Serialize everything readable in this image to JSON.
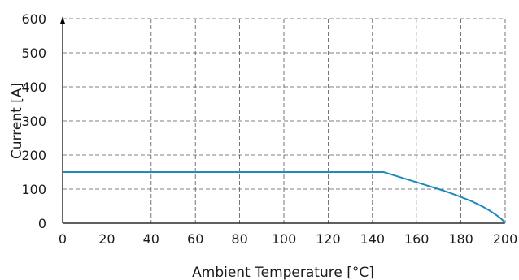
{
  "colors": {
    "series": "#1f8ac0",
    "grid": "#555555",
    "axis": "#000000"
  },
  "chart_data": {
    "type": "line",
    "title": "",
    "xlabel": "Ambient Temperature [°C]",
    "ylabel": "Current [A]",
    "xlim": [
      0,
      200
    ],
    "ylim": [
      0,
      600
    ],
    "xticks": [
      0,
      20,
      40,
      60,
      80,
      100,
      120,
      140,
      160,
      180,
      200
    ],
    "yticks": [
      0,
      100,
      200,
      300,
      400,
      500,
      600
    ],
    "xtick_labels": [
      "0",
      "20",
      "40",
      "60",
      "80",
      "100",
      "120",
      "140",
      "160",
      "180",
      "200"
    ],
    "ytick_labels": [
      "0",
      "100",
      "200",
      "300",
      "400",
      "500",
      "600"
    ],
    "grid": true,
    "legend": "none",
    "series": [
      {
        "x": [
          0,
          145,
          150,
          155,
          160,
          165,
          170,
          175,
          180,
          185,
          190,
          193,
          196,
          198,
          199,
          200
        ],
        "y": [
          150,
          150,
          140,
          130,
          120,
          110,
          100,
          89,
          77,
          64,
          48,
          37,
          24,
          14,
          8,
          0
        ]
      }
    ]
  }
}
